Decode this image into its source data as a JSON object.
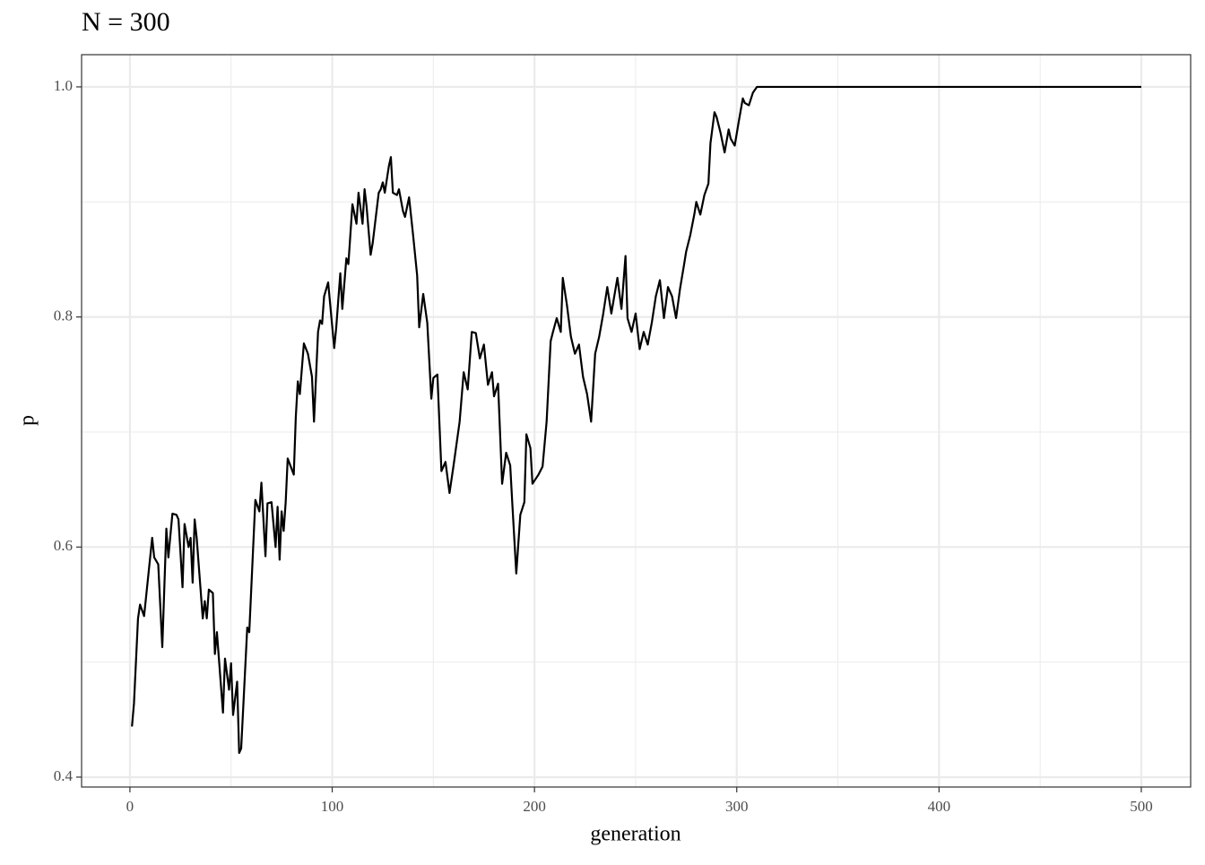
{
  "chart_data": {
    "type": "line",
    "title": "N = 300",
    "x_label": "generation",
    "y_label": "p",
    "xlim": [
      -23.9,
      524.4
    ],
    "ylim": [
      0.3914,
      1.028
    ],
    "xticks": [
      0,
      100,
      200,
      300,
      400,
      500
    ],
    "yticks": [
      0.4,
      0.6,
      0.8,
      {
        "value": 1,
        "label": "1.0"
      }
    ],
    "x_minor_ticks": [
      50,
      150,
      250,
      350,
      450
    ],
    "y_minor_ticks": [
      0.5,
      0.7,
      0.9
    ],
    "grid": true,
    "series": [
      {
        "color": "#000000",
        "x": [
          1,
          2,
          4,
          5,
          7,
          8,
          11,
          12,
          14,
          16,
          18,
          19,
          21,
          23,
          24,
          26,
          27,
          29,
          30,
          31,
          32,
          33,
          36,
          37,
          38,
          39,
          41,
          42,
          43,
          46,
          47,
          49,
          50,
          51,
          53,
          54,
          55,
          58,
          59,
          62,
          64,
          65,
          67,
          68,
          70,
          72,
          73,
          74,
          75,
          76,
          77,
          78,
          81,
          82,
          83,
          84,
          86,
          88,
          90,
          91,
          93,
          94,
          95,
          96,
          98,
          99,
          101,
          102,
          104,
          105,
          107,
          108,
          110,
          112,
          113,
          115,
          116,
          117,
          119,
          120,
          123,
          124,
          125,
          126,
          128,
          129,
          130,
          132,
          133,
          135,
          136,
          138,
          140,
          142,
          143,
          145,
          147,
          149,
          150,
          152,
          154,
          156,
          158,
          160,
          163,
          165,
          167,
          169,
          171,
          173,
          175,
          177,
          179,
          180,
          182,
          184,
          186,
          188,
          189,
          191,
          193,
          195,
          196,
          198,
          199,
          202,
          204,
          206,
          208,
          209,
          211,
          213,
          214,
          216,
          218,
          220,
          222,
          224,
          226,
          228,
          230,
          232,
          234,
          236,
          238,
          241,
          243,
          245,
          246,
          248,
          250,
          252,
          254,
          256,
          258,
          260,
          262,
          264,
          266,
          268,
          270,
          272,
          274,
          275,
          277,
          279,
          280,
          282,
          284,
          286,
          287,
          289,
          290,
          292,
          294,
          296,
          297,
          299,
          301,
          303,
          304,
          306,
          308,
          310,
          500
        ],
        "values": [
          0.444,
          0.464,
          0.538,
          0.55,
          0.54,
          0.557,
          0.608,
          0.591,
          0.585,
          0.513,
          0.616,
          0.591,
          0.629,
          0.628,
          0.624,
          0.565,
          0.62,
          0.6,
          0.608,
          0.569,
          0.624,
          0.608,
          0.538,
          0.553,
          0.538,
          0.563,
          0.56,
          0.507,
          0.526,
          0.456,
          0.503,
          0.476,
          0.499,
          0.454,
          0.483,
          0.421,
          0.425,
          0.53,
          0.526,
          0.641,
          0.631,
          0.656,
          0.592,
          0.638,
          0.639,
          0.6,
          0.635,
          0.589,
          0.631,
          0.614,
          0.639,
          0.677,
          0.663,
          0.713,
          0.744,
          0.733,
          0.777,
          0.768,
          0.748,
          0.709,
          0.787,
          0.797,
          0.794,
          0.818,
          0.83,
          0.811,
          0.773,
          0.791,
          0.838,
          0.807,
          0.851,
          0.846,
          0.898,
          0.881,
          0.908,
          0.881,
          0.911,
          0.896,
          0.854,
          0.864,
          0.908,
          0.911,
          0.917,
          0.908,
          0.931,
          0.939,
          0.908,
          0.906,
          0.911,
          0.892,
          0.887,
          0.904,
          0.871,
          0.836,
          0.791,
          0.82,
          0.795,
          0.729,
          0.747,
          0.75,
          0.666,
          0.674,
          0.647,
          0.671,
          0.709,
          0.752,
          0.737,
          0.787,
          0.786,
          0.764,
          0.776,
          0.741,
          0.752,
          0.731,
          0.742,
          0.655,
          0.682,
          0.671,
          0.639,
          0.577,
          0.628,
          0.639,
          0.698,
          0.686,
          0.655,
          0.663,
          0.67,
          0.709,
          0.779,
          0.786,
          0.799,
          0.787,
          0.834,
          0.811,
          0.783,
          0.768,
          0.776,
          0.748,
          0.733,
          0.709,
          0.768,
          0.783,
          0.803,
          0.826,
          0.803,
          0.834,
          0.807,
          0.853,
          0.799,
          0.787,
          0.803,
          0.772,
          0.787,
          0.776,
          0.795,
          0.818,
          0.832,
          0.799,
          0.826,
          0.818,
          0.799,
          0.825,
          0.846,
          0.857,
          0.871,
          0.889,
          0.9,
          0.889,
          0.906,
          0.916,
          0.951,
          0.978,
          0.974,
          0.96,
          0.943,
          0.963,
          0.955,
          0.949,
          0.97,
          0.99,
          0.986,
          0.984,
          0.995,
          1,
          1
        ]
      }
    ]
  }
}
